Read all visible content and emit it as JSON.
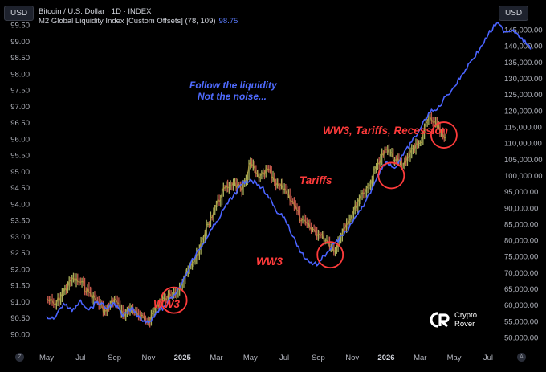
{
  "header": {
    "currency_left": "USD",
    "currency_right": "USD",
    "title_line1": "Bitcoin / U.S. Dollar · 1D · INDEX",
    "title_line2": "M2 Global Liquidity Index [Custom Offsets] (78, 109)",
    "m2_value": "98.75"
  },
  "annotations": {
    "follow_line1": "Follow the liquidity",
    "follow_line2": "Not the noise...",
    "ww3_first": "WW3",
    "ww3_second": "WW3",
    "tariffs": "Tariffs",
    "ww3_tariffs_recession": "WW3, Tariffs, Recession"
  },
  "logo": {
    "line1": "Crypto",
    "line2": "Rover"
  },
  "controls": {
    "left_button": "Z",
    "right_button": "A"
  },
  "chart_data": {
    "type": "line",
    "x_axis": {
      "ticks": [
        "May",
        "Jul",
        "Sep",
        "Nov",
        "2025",
        "Mar",
        "May",
        "Jul",
        "Sep",
        "Nov",
        "2026",
        "Mar",
        "May",
        "Jul"
      ]
    },
    "y_left": {
      "ticks": [
        "99.50",
        "99.00",
        "98.50",
        "98.00",
        "97.50",
        "97.00",
        "96.50",
        "96.00",
        "95.50",
        "95.00",
        "94.50",
        "94.00",
        "93.50",
        "93.00",
        "92.50",
        "92.00",
        "91.50",
        "91.00",
        "90.50",
        "90.00"
      ],
      "ylim": [
        89.85,
        99.6
      ]
    },
    "y_right": {
      "ticks": [
        "145,000.00",
        "140,000.00",
        "135,000.00",
        "130,000.00",
        "125,000.00",
        "120,000.00",
        "115,000.00",
        "110,000.00",
        "105,000.00",
        "100,000.00",
        "95,000.00",
        "90,000.00",
        "85,000.00",
        "80,000.00",
        "75,000.00",
        "70,000.00",
        "65,000.00",
        "60,000.00",
        "55,000.00",
        "50,000.00"
      ],
      "ylim": [
        49500,
        147500
      ]
    },
    "series": [
      {
        "name": "M2 Global Liquidity Index [Custom Offsets] (78, 109)",
        "axis": "left",
        "color": "#4a63ff",
        "points": [
          [
            0.0,
            90.55
          ],
          [
            0.25,
            90.5
          ],
          [
            0.5,
            90.95
          ],
          [
            0.75,
            90.7
          ],
          [
            1.0,
            91.05
          ],
          [
            1.25,
            90.75
          ],
          [
            1.5,
            91.0
          ],
          [
            1.75,
            90.8
          ],
          [
            2.0,
            90.95
          ],
          [
            2.25,
            90.55
          ],
          [
            2.5,
            90.8
          ],
          [
            2.75,
            90.5
          ],
          [
            3.0,
            90.35
          ],
          [
            3.25,
            90.7
          ],
          [
            3.5,
            90.85
          ],
          [
            3.75,
            91.2
          ],
          [
            4.0,
            91.6
          ],
          [
            4.25,
            92.2
          ],
          [
            4.5,
            92.6
          ],
          [
            4.75,
            93.0
          ],
          [
            5.0,
            93.45
          ],
          [
            5.25,
            93.9
          ],
          [
            5.5,
            94.25
          ],
          [
            5.75,
            94.6
          ],
          [
            6.0,
            94.75
          ],
          [
            6.25,
            94.6
          ],
          [
            6.5,
            94.3
          ],
          [
            6.75,
            93.8
          ],
          [
            7.0,
            93.6
          ],
          [
            7.25,
            93.0
          ],
          [
            7.5,
            92.5
          ],
          [
            7.75,
            92.2
          ],
          [
            8.0,
            92.15
          ],
          [
            8.25,
            92.5
          ],
          [
            8.5,
            92.8
          ],
          [
            8.75,
            93.05
          ],
          [
            9.0,
            93.4
          ],
          [
            9.25,
            93.8
          ],
          [
            9.5,
            94.3
          ],
          [
            9.75,
            94.9
          ],
          [
            10.0,
            95.3
          ],
          [
            10.25,
            95.1
          ],
          [
            10.5,
            95.5
          ],
          [
            10.75,
            95.9
          ],
          [
            11.0,
            96.3
          ],
          [
            11.25,
            96.8
          ],
          [
            11.5,
            96.9
          ],
          [
            11.75,
            97.3
          ],
          [
            12.0,
            97.6
          ],
          [
            12.25,
            98.0
          ],
          [
            12.5,
            98.4
          ],
          [
            12.75,
            98.75
          ],
          [
            13.0,
            99.2
          ],
          [
            13.25,
            99.55
          ],
          [
            13.5,
            99.3
          ],
          [
            13.75,
            99.35
          ],
          [
            14.0,
            99.1
          ],
          [
            14.25,
            98.75
          ]
        ]
      },
      {
        "name": "Bitcoin / U.S. Dollar",
        "axis": "right",
        "color": "#b59a3c",
        "points": [
          [
            0.0,
            62000
          ],
          [
            0.25,
            60000
          ],
          [
            0.5,
            64000
          ],
          [
            0.75,
            68000
          ],
          [
            1.0,
            67000
          ],
          [
            1.25,
            64000
          ],
          [
            1.5,
            61000
          ],
          [
            1.75,
            58000
          ],
          [
            2.0,
            62000
          ],
          [
            2.25,
            57000
          ],
          [
            2.5,
            59000
          ],
          [
            2.75,
            56000
          ],
          [
            3.0,
            55000
          ],
          [
            3.25,
            60000
          ],
          [
            3.5,
            62000
          ],
          [
            3.75,
            64000
          ],
          [
            4.0,
            67000
          ],
          [
            4.25,
            72000
          ],
          [
            4.5,
            77000
          ],
          [
            4.75,
            85000
          ],
          [
            5.0,
            91000
          ],
          [
            5.25,
            96000
          ],
          [
            5.5,
            98000
          ],
          [
            5.75,
            95000
          ],
          [
            6.0,
            104000
          ],
          [
            6.25,
            99000
          ],
          [
            6.5,
            102000
          ],
          [
            6.75,
            97000
          ],
          [
            7.0,
            96000
          ],
          [
            7.25,
            92000
          ],
          [
            7.5,
            86000
          ],
          [
            7.75,
            84000
          ],
          [
            8.0,
            82000
          ],
          [
            8.25,
            80000
          ],
          [
            8.5,
            77000
          ],
          [
            8.75,
            84000
          ],
          [
            9.0,
            88000
          ],
          [
            9.25,
            94000
          ],
          [
            9.5,
            97000
          ],
          [
            9.75,
            104000
          ],
          [
            10.0,
            108000
          ],
          [
            10.25,
            105000
          ],
          [
            10.5,
            103000
          ],
          [
            10.75,
            108000
          ],
          [
            11.0,
            110000
          ],
          [
            11.25,
            118000
          ],
          [
            11.5,
            115000
          ],
          [
            11.75,
            112000
          ]
        ]
      }
    ],
    "annotation_circles": [
      {
        "label": "WW3",
        "x": 3.75,
        "y_right": 61500
      },
      {
        "label": "WW3",
        "x": 8.35,
        "y_right": 75500
      },
      {
        "label": "Tariffs",
        "x": 10.15,
        "y_right": 100000
      },
      {
        "label": "WW3, Tariffs, Recession",
        "x": 11.7,
        "y_right": 112500
      }
    ],
    "grid": false,
    "legend": "top-left"
  }
}
